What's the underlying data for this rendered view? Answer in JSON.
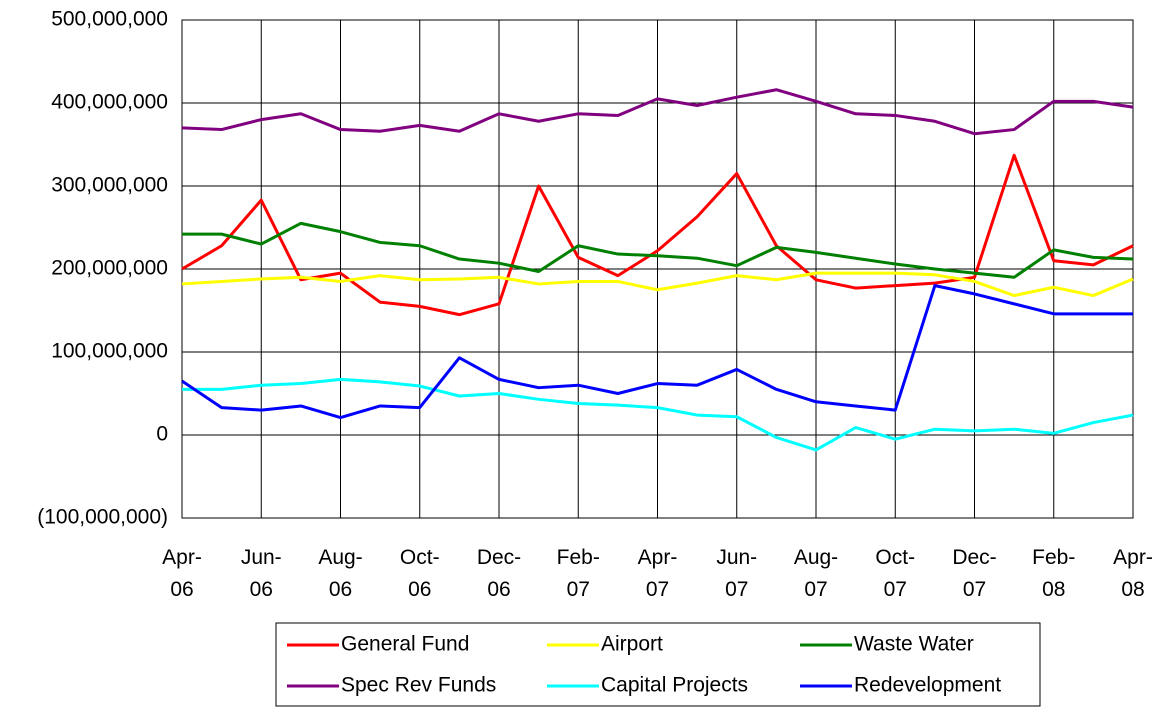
{
  "chart_data": {
    "type": "line",
    "categories": [
      "Apr-06",
      null,
      "Jun-06",
      null,
      "Aug-06",
      null,
      "Oct-06",
      null,
      "Dec-06",
      null,
      "Feb-07",
      null,
      "Apr-07",
      null,
      "Jun-07",
      null,
      "Aug-07",
      null,
      "Oct-07",
      null,
      "Dec-07",
      null,
      "Feb-08",
      null,
      "Apr-08"
    ],
    "series": [
      {
        "name": "General Fund",
        "color": "#ff0000",
        "values": [
          200000000,
          228000000,
          283000000,
          187000000,
          195000000,
          160000000,
          155000000,
          145000000,
          158000000,
          300000000,
          214000000,
          192000000,
          222000000,
          263000000,
          315000000,
          228000000,
          187000000,
          177000000,
          180000000,
          183000000,
          190000000,
          337000000,
          210000000,
          205000000,
          228000000
        ]
      },
      {
        "name": "Airport",
        "color": "#ffff00",
        "values": [
          182000000,
          185000000,
          188000000,
          190000000,
          185000000,
          192000000,
          187000000,
          188000000,
          190000000,
          182000000,
          185000000,
          185000000,
          175000000,
          183000000,
          192000000,
          187000000,
          195000000,
          195000000,
          195000000,
          193000000,
          185000000,
          168000000,
          178000000,
          168000000,
          188000000
        ]
      },
      {
        "name": "Waste Water",
        "color": "#008000",
        "values": [
          242000000,
          242000000,
          230000000,
          255000000,
          245000000,
          232000000,
          228000000,
          212000000,
          207000000,
          197000000,
          228000000,
          218000000,
          216000000,
          213000000,
          204000000,
          226000000,
          220000000,
          213000000,
          206000000,
          200000000,
          195000000,
          190000000,
          223000000,
          214000000,
          212000000
        ]
      },
      {
        "name": "Spec Rev Funds",
        "color": "#800080",
        "values": [
          370000000,
          368000000,
          380000000,
          387000000,
          368000000,
          366000000,
          373000000,
          366000000,
          387000000,
          378000000,
          387000000,
          385000000,
          405000000,
          397000000,
          407000000,
          416000000,
          402000000,
          387000000,
          385000000,
          378000000,
          363000000,
          368000000,
          402000000,
          402000000,
          395000000
        ]
      },
      {
        "name": "Capital Projects",
        "color": "#00ffff",
        "values": [
          55000000,
          55000000,
          60000000,
          62000000,
          67000000,
          64000000,
          59000000,
          47000000,
          50000000,
          43000000,
          38000000,
          36000000,
          33000000,
          24000000,
          22000000,
          -3000000,
          -18000000,
          9000000,
          -5000000,
          7000000,
          5000000,
          7000000,
          2000000,
          15000000,
          24000000
        ]
      },
      {
        "name": "Redevelopment",
        "color": "#0000ff",
        "values": [
          65000000,
          33000000,
          30000000,
          35000000,
          21000000,
          35000000,
          33000000,
          93000000,
          67000000,
          57000000,
          60000000,
          50000000,
          62000000,
          60000000,
          79000000,
          55000000,
          40000000,
          35000000,
          30000000,
          180000000,
          170000000,
          158000000,
          146000000,
          146000000,
          146000000
        ]
      }
    ],
    "ylim": [
      -100000000,
      500000000
    ],
    "yticks": [
      {
        "value": -100000000,
        "label": "(100,000,000)"
      },
      0,
      {
        "value": 100000000,
        "label": "100,000,000"
      },
      {
        "value": 200000000,
        "label": "200,000,000"
      },
      {
        "value": 300000000,
        "label": "300,000,000"
      },
      {
        "value": 400000000,
        "label": "400,000,000"
      },
      {
        "value": 500000000,
        "label": "500,000,000"
      }
    ],
    "grid": true,
    "legend": "bottom"
  }
}
